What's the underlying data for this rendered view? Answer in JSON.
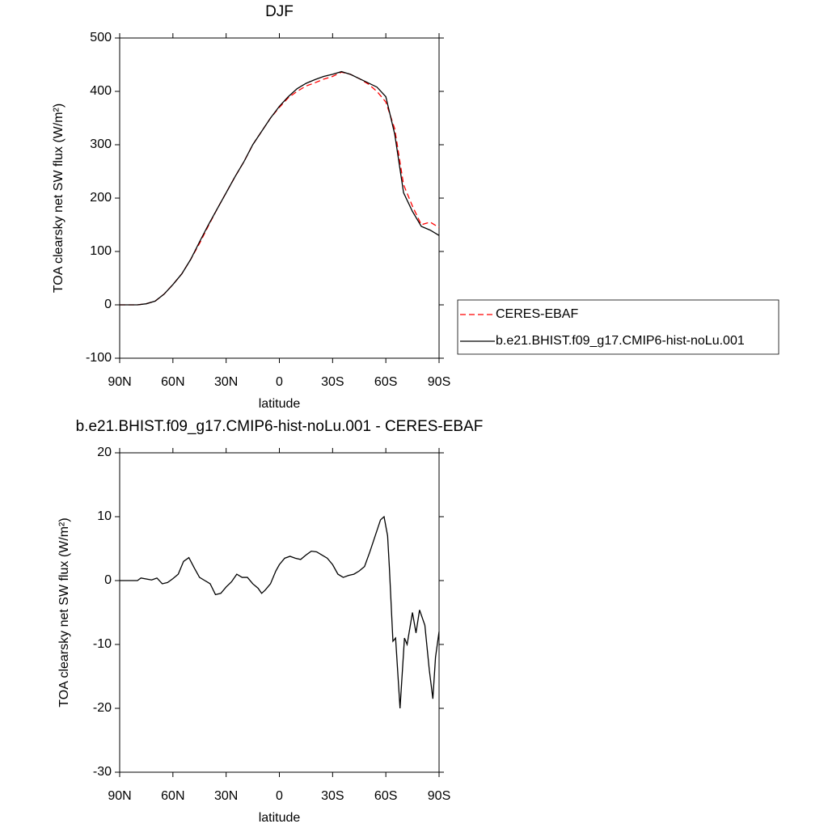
{
  "chart_data": [
    {
      "type": "line",
      "title": "DJF",
      "x_label": "latitude",
      "y_label": "TOA clearsky net SW flux (W/m²)",
      "x": [
        90,
        85,
        80,
        75,
        70,
        65,
        60,
        55,
        50,
        45,
        40,
        35,
        30,
        25,
        20,
        15,
        10,
        5,
        0,
        -5,
        -10,
        -15,
        -20,
        -25,
        -30,
        -35,
        -40,
        -45,
        -50,
        -55,
        -60,
        -65,
        -70,
        -75,
        -80,
        -85,
        -90
      ],
      "series": [
        {
          "name": "CERES-EBAF",
          "color": "#ff0000",
          "line_style": "dashed",
          "values": [
            0,
            0,
            0,
            2,
            7,
            20,
            38,
            58,
            85,
            115,
            148,
            180,
            210,
            240,
            268,
            300,
            325,
            350,
            370,
            388,
            400,
            410,
            416,
            423,
            428,
            436,
            432,
            424,
            414,
            400,
            380,
            330,
            225,
            185,
            150,
            155,
            145
          ]
        },
        {
          "name": "b.e21.BHIST.f09_g17.CMIP6-hist-noLu.001",
          "color": "#000000",
          "line_style": "solid",
          "values": [
            0,
            0,
            0,
            2,
            7,
            20,
            38,
            58,
            85,
            118,
            150,
            180,
            210,
            240,
            268,
            300,
            325,
            350,
            372,
            390,
            405,
            415,
            422,
            428,
            432,
            437,
            432,
            424,
            416,
            408,
            390,
            320,
            210,
            175,
            147,
            140,
            130
          ]
        }
      ],
      "xlim": [
        90,
        -90
      ],
      "xticks": [
        {
          "value": 90,
          "label": "90N"
        },
        {
          "value": 60,
          "label": "60N"
        },
        {
          "value": 30,
          "label": "30N"
        },
        0,
        {
          "value": -30,
          "label": "30S"
        },
        {
          "value": -60,
          "label": "60S"
        },
        {
          "value": -90,
          "label": "90S"
        }
      ],
      "ylim": [
        -100,
        500
      ],
      "yticks": [
        -100,
        0,
        100,
        200,
        300,
        400,
        500
      ],
      "legend": "right"
    },
    {
      "type": "line",
      "title": "b.e21.BHIST.f09_g17.CMIP6-hist-noLu.001 - CERES-EBAF",
      "x_label": "latitude",
      "y_label": "TOA clearsky net SW flux (W/m²)",
      "x": [
        90,
        80,
        78,
        72,
        69,
        66,
        63,
        60,
        57,
        54,
        51,
        48,
        45,
        42,
        39,
        36,
        33,
        30,
        27,
        24,
        21,
        18,
        15,
        12,
        10,
        8,
        5,
        2,
        0,
        -3,
        -6,
        -9,
        -12,
        -15,
        -18,
        -21,
        -24,
        -27,
        -30,
        -33,
        -36,
        -39,
        -42,
        -45,
        -48,
        -51,
        -54,
        -57,
        -59,
        -61,
        -62,
        -64,
        -65.5,
        -68,
        -70.5,
        -72,
        -75,
        -77,
        -79,
        -82,
        -84.5,
        -86.5,
        -88,
        -90
      ],
      "series": [
        {
          "name": "b.e21.BHIST.f09_g17.CMIP6-hist-noLu.001 - CERES-EBAF",
          "color": "#000000",
          "line_style": "solid",
          "values": [
            0,
            0,
            0.4,
            0.1,
            0.4,
            -0.5,
            -0.3,
            0.3,
            1.0,
            3.0,
            3.6,
            2.0,
            0.5,
            0,
            -0.5,
            -2.2,
            -2.0,
            -1.0,
            -0.2,
            1.0,
            0.5,
            0.5,
            -0.5,
            -1.2,
            -2.0,
            -1.5,
            -0.5,
            1.5,
            2.5,
            3.5,
            3.8,
            3.5,
            3.3,
            4.0,
            4.6,
            4.5,
            4.0,
            3.5,
            2.5,
            1.0,
            0.5,
            0.8,
            1.0,
            1.5,
            2.2,
            4.5,
            7.0,
            9.5,
            10.0,
            7.0,
            2.0,
            -9.5,
            -9.0,
            -20,
            -9.0,
            -10,
            -5.0,
            -8.2,
            -4.6,
            -7.0,
            -14,
            -18.5,
            -12,
            -8.0
          ]
        }
      ],
      "xlim": [
        90,
        -90
      ],
      "xticks": [
        {
          "value": 90,
          "label": "90N"
        },
        {
          "value": 60,
          "label": "60N"
        },
        {
          "value": 30,
          "label": "30N"
        },
        0,
        {
          "value": -30,
          "label": "30S"
        },
        {
          "value": -60,
          "label": "60S"
        },
        {
          "value": -90,
          "label": "90S"
        }
      ],
      "ylim": [
        -30,
        20
      ],
      "yticks": [
        -30,
        -20,
        -10,
        0,
        10,
        20
      ]
    }
  ]
}
